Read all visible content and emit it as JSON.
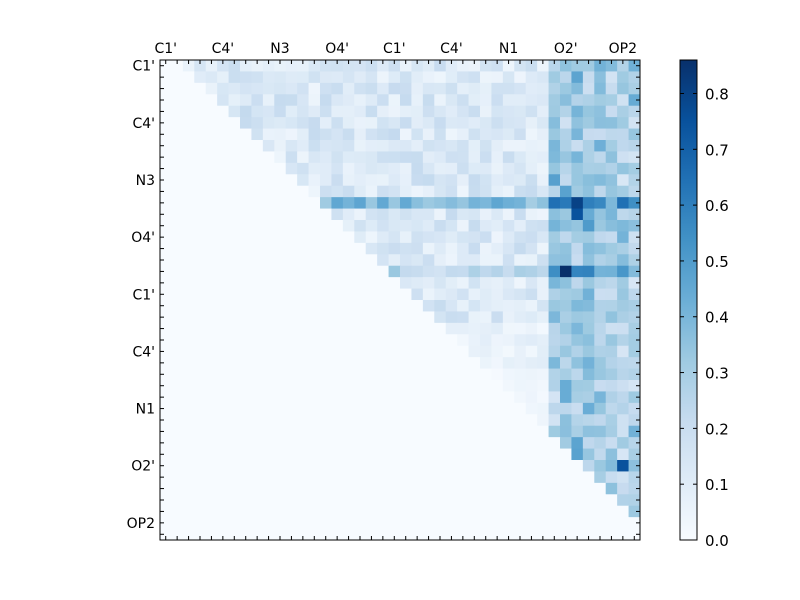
{
  "chart_data": {
    "type": "heatmap",
    "rows": 42,
    "cols": 42,
    "col_tick_labels": [
      "C1'",
      "C4'",
      "N3",
      "O4'",
      "C1'",
      "C4'",
      "N1",
      "O2'",
      "OP2"
    ],
    "row_tick_labels": [
      "C1'",
      "C4'",
      "N3",
      "O4'",
      "C1'",
      "C4'",
      "N1",
      "O2'",
      "OP2"
    ],
    "label_indices": [
      0,
      5,
      10,
      15,
      20,
      25,
      30,
      35,
      40
    ],
    "colormap": "Blues",
    "colors": {
      "low": "#f7fbff",
      "high": "#08306b"
    },
    "colorbar": {
      "vmin": 0.0,
      "vmax": 0.86,
      "ticks": [
        0.0,
        0.1,
        0.2,
        0.3,
        0.4,
        0.5,
        0.6,
        0.7,
        0.8
      ],
      "tick_labels": [
        "0.0",
        "0.1",
        "0.2",
        "0.3",
        "0.4",
        "0.5",
        "0.6",
        "0.7",
        "0.8"
      ]
    },
    "matrix_structure": "upper-triangular; values below the diagonal are 0",
    "highlights": [
      {
        "row": 12,
        "col": 36,
        "value": 0.8
      },
      {
        "row": 18,
        "col": 35,
        "value": 0.86
      },
      {
        "row": 13,
        "col": 36,
        "value": 0.75
      },
      {
        "row": 35,
        "col": 40,
        "value": 0.75
      },
      {
        "row": 12,
        "col": 40,
        "value": 0.65
      },
      {
        "row": 12,
        "col": 37,
        "value": 0.6
      }
    ]
  }
}
